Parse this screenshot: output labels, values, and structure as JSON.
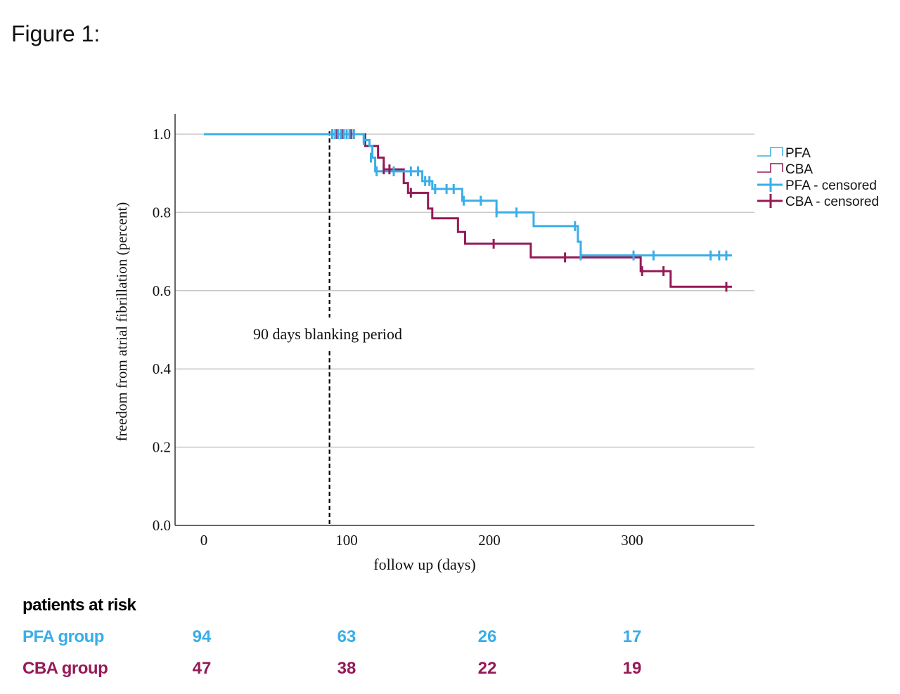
{
  "figure_label": "Figure 1:",
  "colors": {
    "pfa": "#3aaee8",
    "cba": "#961a57",
    "grid": "#c8c8c8",
    "axis": "#333333"
  },
  "chart_data": {
    "type": "line",
    "subtype": "kaplan-meier step",
    "title": "",
    "xlabel": "follow up (days)",
    "ylabel": "freedom from atrial fibrillation (percent)",
    "xlim": [
      -20,
      385
    ],
    "ylim": [
      0,
      1.05
    ],
    "xticks": [
      0,
      100,
      200,
      300
    ],
    "xtick_labels": [
      "0",
      "100",
      "200",
      "300"
    ],
    "yticks": [
      0,
      0.2,
      0.4,
      0.6,
      0.8,
      1.0
    ],
    "ytick_labels": [
      "0.0",
      "0.2",
      "0.4",
      "0.6",
      "0.8",
      "1.0"
    ],
    "grid": "horizontal",
    "legend_position": "right",
    "legend": [
      "PFA",
      "CBA",
      "PFA - censored",
      "CBA - censored"
    ],
    "annotation": {
      "text": "90 days blanking period",
      "x": 88
    },
    "series": [
      {
        "name": "PFA",
        "color_key": "pfa",
        "steps": [
          [
            0,
            1.0
          ],
          [
            110,
            1.0
          ],
          [
            112,
            0.985
          ],
          [
            116,
            0.97
          ],
          [
            118,
            0.94
          ],
          [
            120,
            0.905
          ],
          [
            148,
            0.905
          ],
          [
            153,
            0.88
          ],
          [
            160,
            0.86
          ],
          [
            178,
            0.86
          ],
          [
            181,
            0.83
          ],
          [
            204,
            0.83
          ],
          [
            205,
            0.8
          ],
          [
            230,
            0.8
          ],
          [
            231,
            0.765
          ],
          [
            260,
            0.765
          ],
          [
            262,
            0.725
          ],
          [
            264,
            0.69
          ],
          [
            370,
            0.69
          ]
        ],
        "censored": [
          [
            90,
            1.0
          ],
          [
            92,
            1.0
          ],
          [
            94,
            1.0
          ],
          [
            96,
            1.0
          ],
          [
            98,
            1.0
          ],
          [
            100,
            1.0
          ],
          [
            102,
            1.0
          ],
          [
            105,
            1.0
          ],
          [
            112,
            0.985
          ],
          [
            117,
            0.94
          ],
          [
            121,
            0.905
          ],
          [
            133,
            0.905
          ],
          [
            145,
            0.905
          ],
          [
            150,
            0.905
          ],
          [
            155,
            0.88
          ],
          [
            158,
            0.88
          ],
          [
            162,
            0.86
          ],
          [
            170,
            0.86
          ],
          [
            175,
            0.86
          ],
          [
            182,
            0.83
          ],
          [
            194,
            0.83
          ],
          [
            205,
            0.8
          ],
          [
            219,
            0.8
          ],
          [
            260,
            0.765
          ],
          [
            264,
            0.69
          ],
          [
            301,
            0.69
          ],
          [
            315,
            0.69
          ],
          [
            355,
            0.69
          ],
          [
            361,
            0.69
          ],
          [
            366,
            0.69
          ]
        ]
      },
      {
        "name": "CBA",
        "color_key": "cba",
        "steps": [
          [
            0,
            1.0
          ],
          [
            108,
            1.0
          ],
          [
            113,
            0.97
          ],
          [
            122,
            0.94
          ],
          [
            126,
            0.91
          ],
          [
            138,
            0.91
          ],
          [
            140,
            0.875
          ],
          [
            143,
            0.85
          ],
          [
            155,
            0.85
          ],
          [
            157,
            0.81
          ],
          [
            160,
            0.785
          ],
          [
            175,
            0.785
          ],
          [
            178,
            0.75
          ],
          [
            183,
            0.72
          ],
          [
            227,
            0.72
          ],
          [
            229,
            0.685
          ],
          [
            305,
            0.685
          ],
          [
            306,
            0.65
          ],
          [
            326,
            0.65
          ],
          [
            327,
            0.61
          ],
          [
            370,
            0.61
          ]
        ],
        "censored": [
          [
            90,
            1.0
          ],
          [
            93,
            1.0
          ],
          [
            97,
            1.0
          ],
          [
            100,
            1.0
          ],
          [
            103,
            1.0
          ],
          [
            105,
            1.0
          ],
          [
            126,
            0.91
          ],
          [
            130,
            0.91
          ],
          [
            145,
            0.85
          ],
          [
            203,
            0.72
          ],
          [
            253,
            0.685
          ],
          [
            307,
            0.65
          ],
          [
            322,
            0.65
          ],
          [
            366,
            0.61
          ]
        ]
      }
    ]
  },
  "risk_table": {
    "title": "patients at risk",
    "rows": [
      {
        "label": "PFA group",
        "color_key": "pfa",
        "values": [
          "94",
          "63",
          "26",
          "17"
        ]
      },
      {
        "label": "CBA group",
        "color_key": "cba",
        "values": [
          "47",
          "38",
          "22",
          "19"
        ]
      }
    ]
  }
}
